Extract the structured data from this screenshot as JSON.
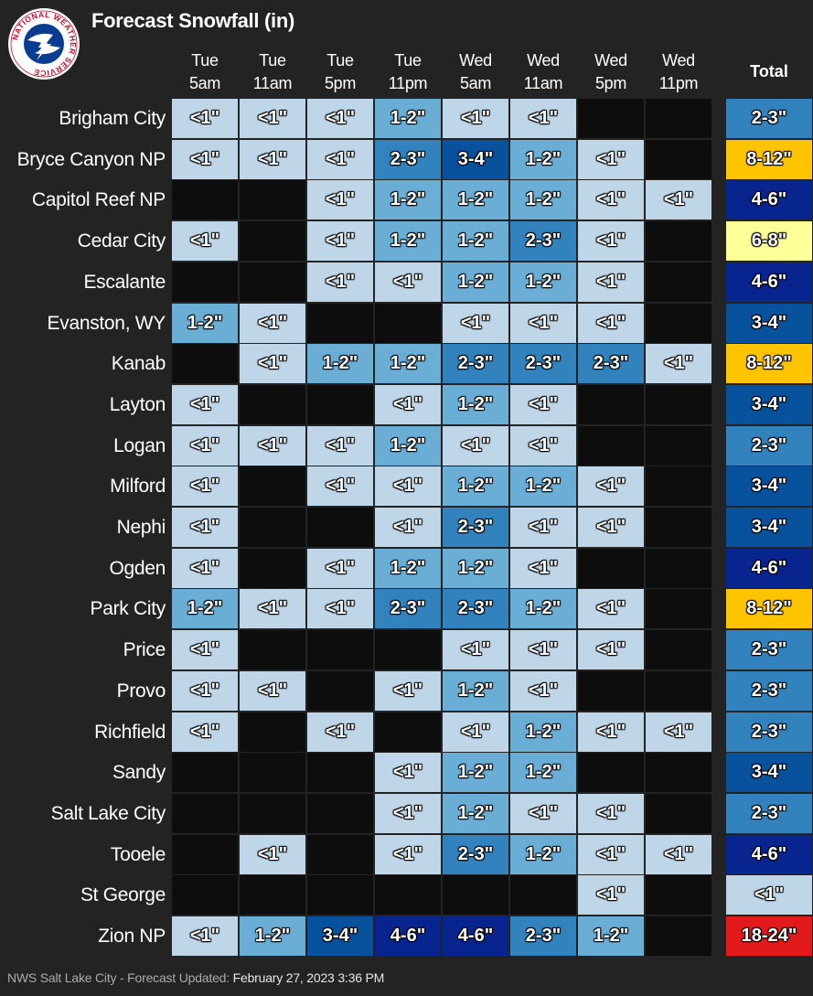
{
  "header": {
    "title": "Forecast Snowfall (in)",
    "total_label": "Total",
    "logo_text": "NATIONAL WEATHER SERVICE"
  },
  "footer": {
    "source": "NWS Salt Lake City - Forecast Updated:",
    "updated": "February 27, 2023 3:36 PM"
  },
  "colors": {
    "background": "#232323",
    "empty_cell": "#0d0d0d",
    "<1\"": "#bed6e7",
    "1-2\"": "#6aaed6",
    "2-3\"": "#3182bd",
    "3-4\"": "#08519c",
    "4-6\"": "#08248f",
    "6-8\"": "#ffff99",
    "8-12\"": "#ffc400",
    "18-24\"": "#e31a1c"
  },
  "chart_data": {
    "type": "table",
    "title": "Forecast Snowfall (in)",
    "columns": [
      {
        "day": "Tue",
        "time": "5am"
      },
      {
        "day": "Tue",
        "time": "11am"
      },
      {
        "day": "Tue",
        "time": "5pm"
      },
      {
        "day": "Tue",
        "time": "11pm"
      },
      {
        "day": "Wed",
        "time": "5am"
      },
      {
        "day": "Wed",
        "time": "11am"
      },
      {
        "day": "Wed",
        "time": "5pm"
      },
      {
        "day": "Wed",
        "time": "11pm"
      }
    ],
    "rows": [
      {
        "location": "Brigham City",
        "values": [
          "<1\"",
          "<1\"",
          "<1\"",
          "1-2\"",
          "<1\"",
          "<1\"",
          "",
          ""
        ],
        "total": "2-3\""
      },
      {
        "location": "Bryce Canyon NP",
        "values": [
          "<1\"",
          "<1\"",
          "<1\"",
          "2-3\"",
          "3-4\"",
          "1-2\"",
          "<1\"",
          ""
        ],
        "total": "8-12\""
      },
      {
        "location": "Capitol Reef NP",
        "values": [
          "",
          "",
          "<1\"",
          "1-2\"",
          "1-2\"",
          "1-2\"",
          "<1\"",
          "<1\""
        ],
        "total": "4-6\""
      },
      {
        "location": "Cedar City",
        "values": [
          "<1\"",
          "",
          "<1\"",
          "1-2\"",
          "1-2\"",
          "2-3\"",
          "<1\"",
          ""
        ],
        "total": "6-8\""
      },
      {
        "location": "Escalante",
        "values": [
          "",
          "",
          "<1\"",
          "<1\"",
          "1-2\"",
          "1-2\"",
          "<1\"",
          ""
        ],
        "total": "4-6\""
      },
      {
        "location": "Evanston, WY",
        "values": [
          "1-2\"",
          "<1\"",
          "",
          "",
          "<1\"",
          "<1\"",
          "<1\"",
          ""
        ],
        "total": "3-4\""
      },
      {
        "location": "Kanab",
        "values": [
          "",
          "<1\"",
          "1-2\"",
          "1-2\"",
          "2-3\"",
          "2-3\"",
          "2-3\"",
          "<1\""
        ],
        "total": "8-12\""
      },
      {
        "location": "Layton",
        "values": [
          "<1\"",
          "",
          "",
          "<1\"",
          "1-2\"",
          "<1\"",
          "",
          ""
        ],
        "total": "3-4\""
      },
      {
        "location": "Logan",
        "values": [
          "<1\"",
          "<1\"",
          "<1\"",
          "1-2\"",
          "<1\"",
          "<1\"",
          "",
          ""
        ],
        "total": "2-3\""
      },
      {
        "location": "Milford",
        "values": [
          "<1\"",
          "",
          "<1\"",
          "<1\"",
          "1-2\"",
          "1-2\"",
          "<1\"",
          ""
        ],
        "total": "3-4\""
      },
      {
        "location": "Nephi",
        "values": [
          "<1\"",
          "",
          "",
          "<1\"",
          "2-3\"",
          "<1\"",
          "<1\"",
          ""
        ],
        "total": "3-4\""
      },
      {
        "location": "Ogden",
        "values": [
          "<1\"",
          "",
          "<1\"",
          "1-2\"",
          "1-2\"",
          "<1\"",
          "",
          ""
        ],
        "total": "4-6\""
      },
      {
        "location": "Park City",
        "values": [
          "1-2\"",
          "<1\"",
          "<1\"",
          "2-3\"",
          "2-3\"",
          "1-2\"",
          "<1\"",
          ""
        ],
        "total": "8-12\""
      },
      {
        "location": "Price",
        "values": [
          "<1\"",
          "",
          "",
          "",
          "<1\"",
          "<1\"",
          "<1\"",
          ""
        ],
        "total": "2-3\""
      },
      {
        "location": "Provo",
        "values": [
          "<1\"",
          "<1\"",
          "",
          "<1\"",
          "1-2\"",
          "<1\"",
          "",
          ""
        ],
        "total": "2-3\""
      },
      {
        "location": "Richfield",
        "values": [
          "<1\"",
          "",
          "<1\"",
          "",
          "<1\"",
          "1-2\"",
          "<1\"",
          "<1\""
        ],
        "total": "2-3\""
      },
      {
        "location": "Sandy",
        "values": [
          "",
          "",
          "",
          "<1\"",
          "1-2\"",
          "1-2\"",
          "",
          ""
        ],
        "total": "3-4\""
      },
      {
        "location": "Salt Lake City",
        "values": [
          "",
          "",
          "",
          "<1\"",
          "1-2\"",
          "<1\"",
          "<1\"",
          ""
        ],
        "total": "2-3\""
      },
      {
        "location": "Tooele",
        "values": [
          "",
          "<1\"",
          "",
          "<1\"",
          "2-3\"",
          "1-2\"",
          "<1\"",
          "<1\""
        ],
        "total": "4-6\""
      },
      {
        "location": "St George",
        "values": [
          "",
          "",
          "",
          "",
          "",
          "",
          "<1\"",
          ""
        ],
        "total": "<1\""
      },
      {
        "location": "Zion NP",
        "values": [
          "<1\"",
          "1-2\"",
          "3-4\"",
          "4-6\"",
          "4-6\"",
          "2-3\"",
          "1-2\"",
          ""
        ],
        "total": "18-24\""
      }
    ]
  }
}
